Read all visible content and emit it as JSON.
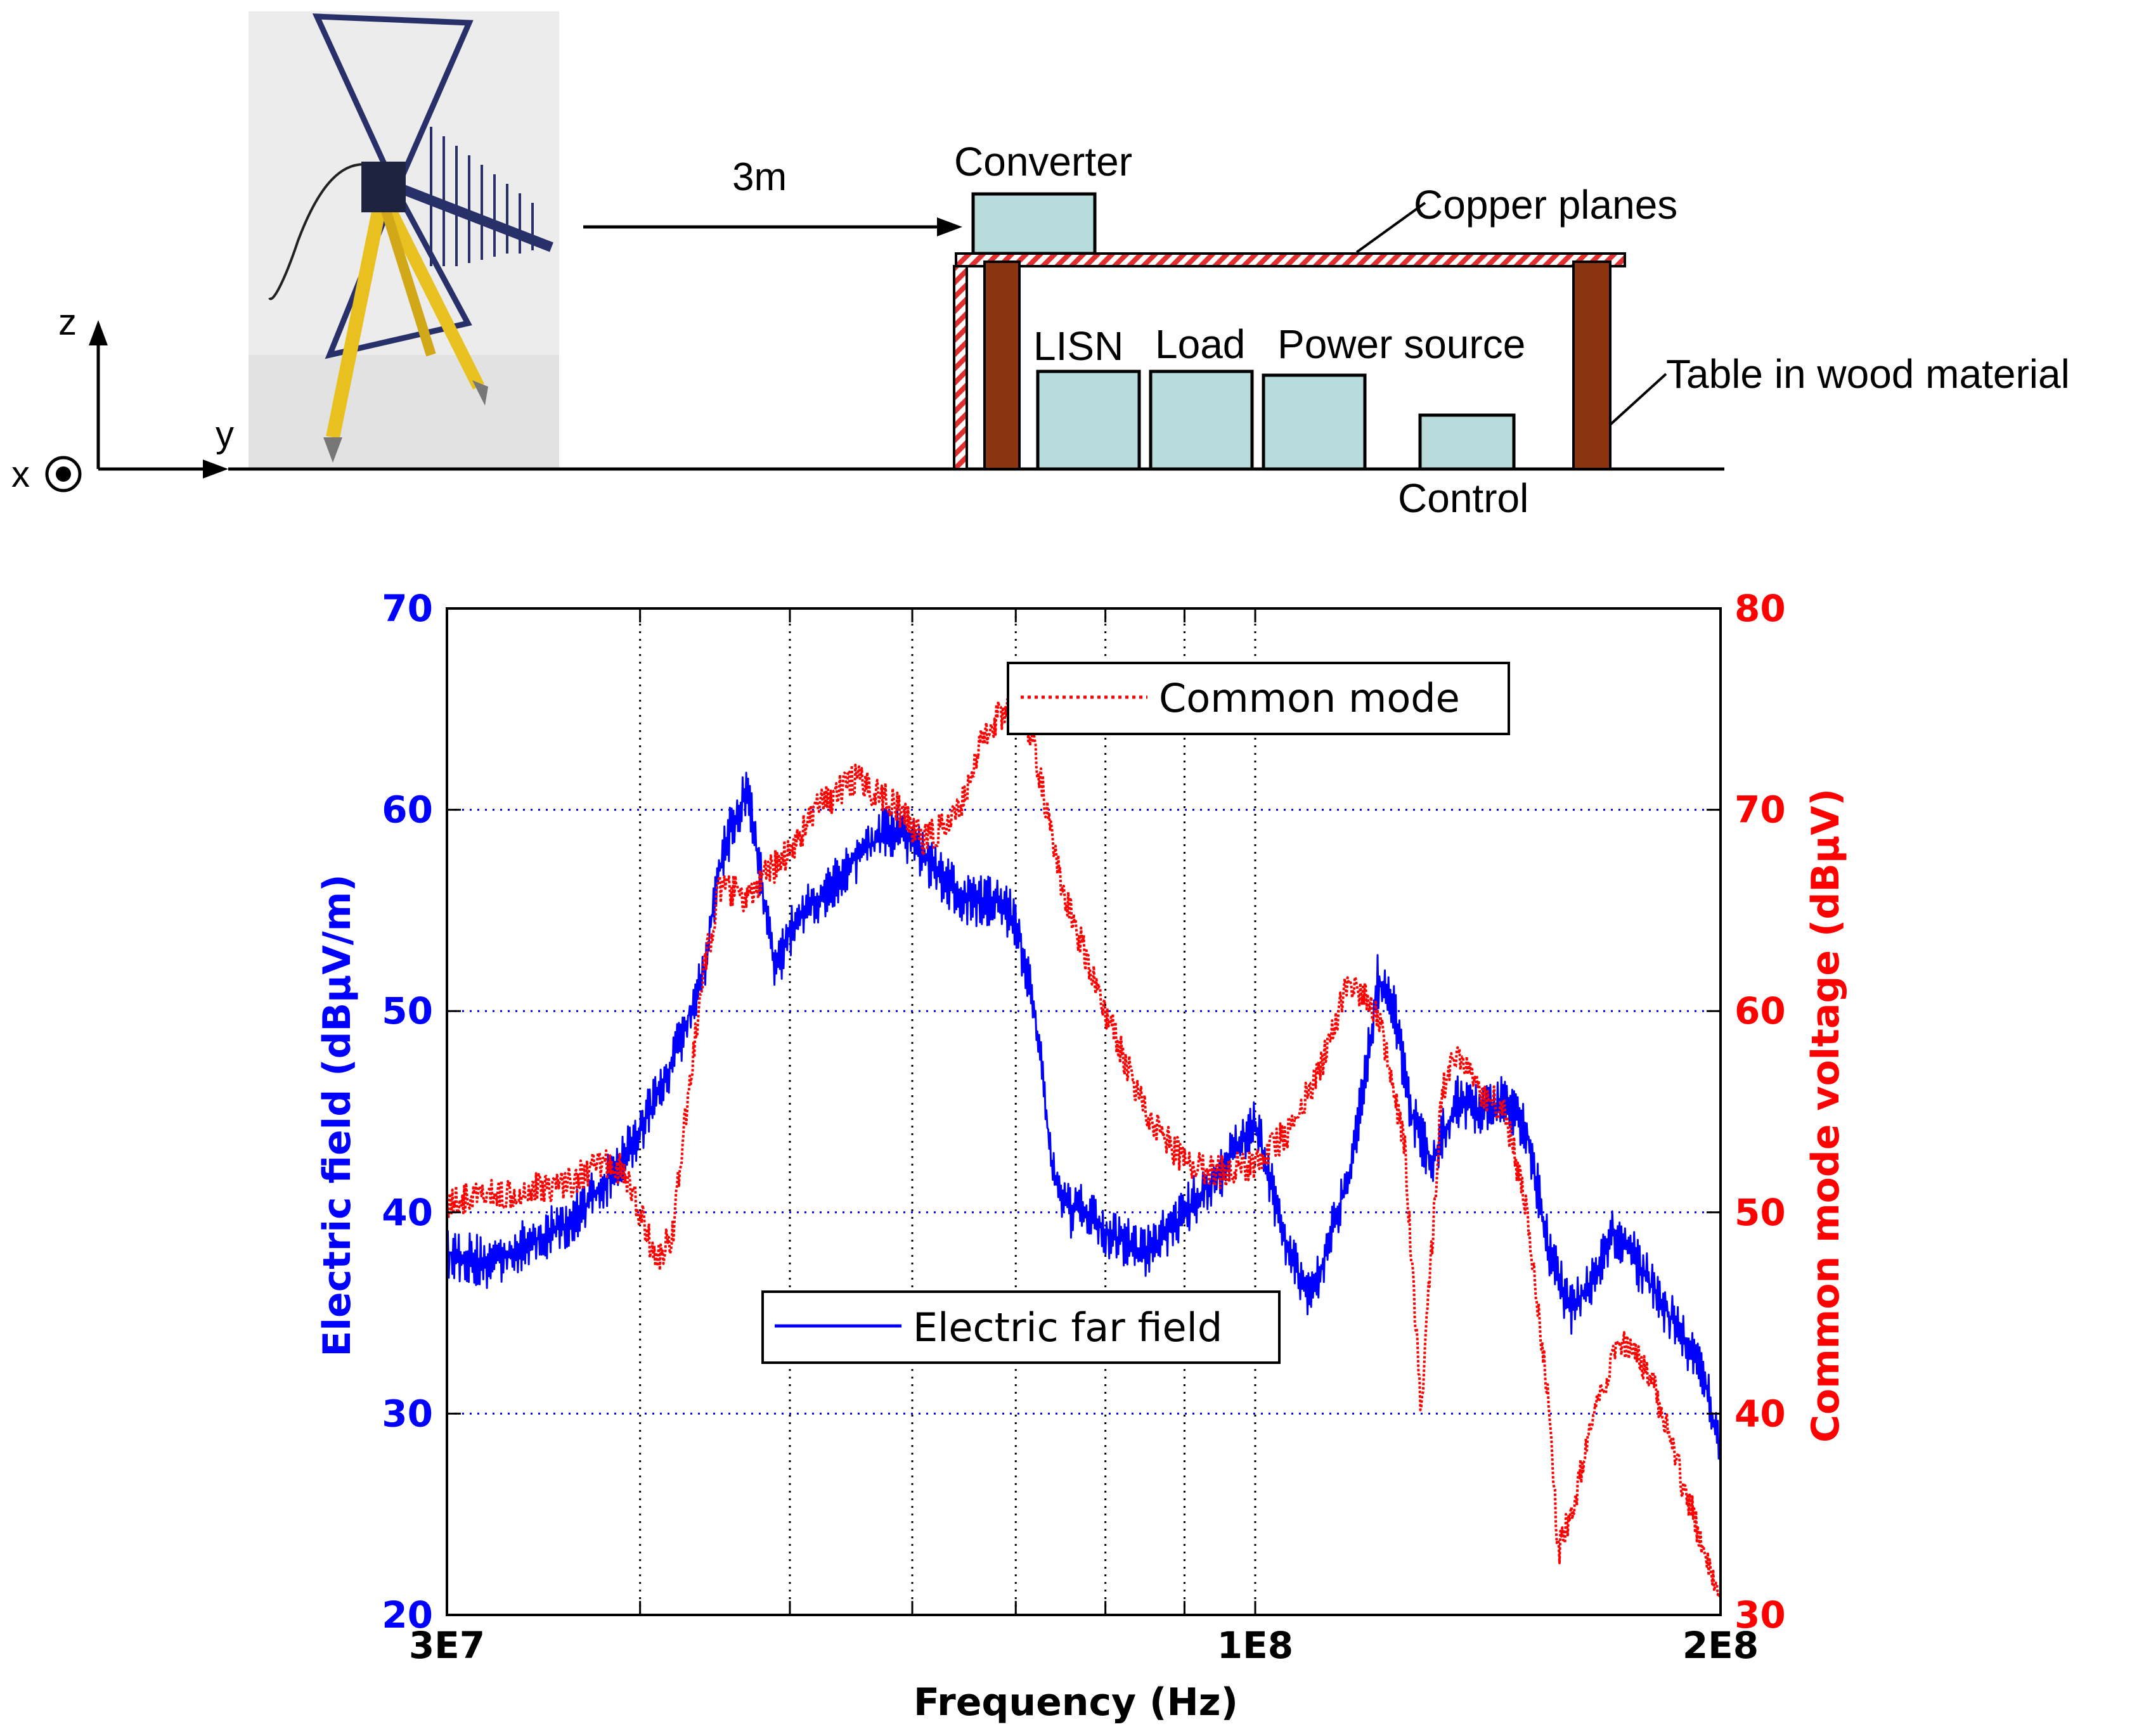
{
  "diagram": {
    "distance_label": "3m",
    "converter_label": "Converter",
    "copper_label": "Copper planes",
    "lisn_label": "LISN",
    "load_label": "Load",
    "power_label": "Power source",
    "table_label": "Table in wood material",
    "control_label": "Control",
    "axis_z": "z",
    "axis_y": "y",
    "axis_x": "x",
    "colors": {
      "box_fill": "#b8dcdc",
      "wood": "#8b3410",
      "copper_stripe": "#e03030",
      "antenna_blue": "#28306a",
      "tripod_yellow": "#e8c020"
    }
  },
  "chart_data": {
    "type": "line",
    "title": "",
    "xlabel": "Frequency (Hz)",
    "ylabel_left": "Electric field (dBµV/m)",
    "ylabel_right": "Common mode voltage (dBµV)",
    "xscale": "log",
    "xlim": [
      30000000,
      200000000
    ],
    "ylim_left": [
      20,
      70
    ],
    "ylim_right": [
      30,
      80
    ],
    "x_tick_labels": [
      "3E7",
      "1E8",
      "2E8"
    ],
    "left_tick_labels": [
      "20",
      "30",
      "40",
      "50",
      "60",
      "70"
    ],
    "right_tick_labels": [
      "30",
      "40",
      "50",
      "60",
      "70",
      "80"
    ],
    "grid": true,
    "series": [
      {
        "name": "Electric far field",
        "axis": "left",
        "color": "#0000ff",
        "style": "solid",
        "x": [
          30000000,
          32000000,
          34000000,
          36000000,
          38000000,
          40000000,
          42000000,
          44000000,
          45000000,
          46000000,
          47000000,
          48000000,
          49000000,
          50000000,
          52000000,
          55000000,
          58000000,
          60000000,
          62000000,
          65000000,
          68000000,
          70000000,
          72000000,
          73000000,
          74000000,
          75000000,
          76000000,
          77000000,
          80000000,
          85000000,
          90000000,
          95000000,
          100000000,
          105000000,
          108000000,
          110000000,
          115000000,
          118000000,
          120000000,
          123000000,
          126000000,
          130000000,
          135000000,
          140000000,
          145000000,
          150000000,
          155000000,
          160000000,
          166000000,
          170000000,
          175000000,
          185000000,
          195000000,
          200000000
        ],
        "y": [
          38,
          37.5,
          38.5,
          39.5,
          41.5,
          44,
          47.5,
          52,
          57,
          59.5,
          61,
          56,
          52,
          54,
          55.5,
          57.5,
          59,
          58.5,
          57,
          55.5,
          55.5,
          54.5,
          50,
          46,
          42,
          41,
          40,
          40.5,
          39,
          38,
          40,
          42,
          44.5,
          38,
          36,
          37,
          42,
          47,
          51.5,
          50,
          45,
          42.5,
          45.5,
          45,
          45.5,
          44,
          38,
          35,
          37,
          39,
          38,
          35,
          32,
          28
        ]
      },
      {
        "name": "Common mode",
        "axis": "right",
        "color": "#ff0000",
        "style": "dotted",
        "x": [
          30000000,
          33000000,
          36000000,
          38000000,
          39000000,
          40000000,
          41000000,
          42000000,
          43000000,
          44000000,
          45000000,
          46000000,
          47000000,
          48000000,
          50000000,
          52000000,
          55000000,
          58000000,
          61000000,
          64000000,
          67000000,
          70000000,
          72000000,
          75000000,
          80000000,
          85000000,
          90000000,
          95000000,
          100000000,
          105000000,
          110000000,
          115000000,
          120000000,
          125000000,
          128000000,
          130000000,
          132000000,
          135000000,
          140000000,
          145000000,
          150000000,
          155000000,
          157000000,
          160000000,
          166000000,
          172000000,
          180000000,
          190000000,
          200000000
        ],
        "y": [
          50.5,
          51,
          51.5,
          52.5,
          52,
          50,
          47.5,
          49,
          56,
          62,
          66,
          66,
          65.5,
          66.5,
          68,
          70,
          71.5,
          70.5,
          68.5,
          69.5,
          74,
          75.5,
          73,
          66,
          60,
          55,
          52.5,
          52,
          52.5,
          54,
          57,
          61.5,
          60,
          53,
          40,
          48,
          56,
          58,
          56,
          55,
          50,
          40,
          33,
          35,
          40,
          43.5,
          42,
          36,
          31
        ]
      }
    ],
    "legend": [
      {
        "name": "Common mode",
        "placement": "top-right"
      },
      {
        "name": "Electric far field",
        "placement": "center-left"
      }
    ]
  }
}
